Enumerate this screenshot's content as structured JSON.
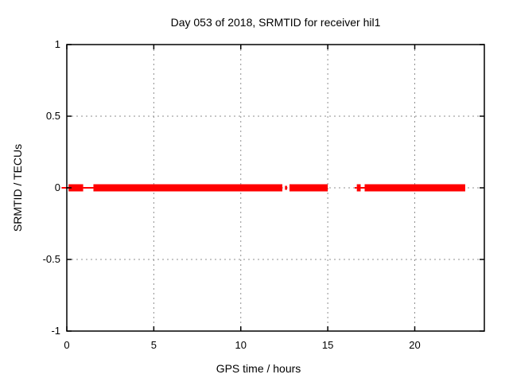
{
  "window": {
    "background_color": "#ffffff",
    "border_color": "#000000"
  },
  "chart_data": {
    "type": "line",
    "title": "Day 053 of 2018, SRMTID for receiver hil1",
    "xlabel": "GPS time / hours",
    "ylabel": "SRMTID / TECUs",
    "xlim": [
      0,
      24
    ],
    "ylim": [
      -1,
      1
    ],
    "grid": true,
    "grid_color": "#8f8f8f",
    "legend": "none",
    "xticks": [
      {
        "value": 0,
        "label": "0"
      },
      {
        "value": 5,
        "label": "5"
      },
      {
        "value": 10,
        "label": "10"
      },
      {
        "value": 15,
        "label": "15"
      },
      {
        "value": 20,
        "label": "20"
      }
    ],
    "yticks": [
      {
        "value": 1,
        "label": "1"
      },
      {
        "value": 0.5,
        "label": "0.5"
      },
      {
        "value": 0,
        "label": "0"
      },
      {
        "value": -0.5,
        "label": "-0.5"
      },
      {
        "value": -1,
        "label": "-1"
      }
    ],
    "series": [
      {
        "name": "SRMTID",
        "color": "#ff0000",
        "y_value": 0,
        "band_halfwidth_tecu": 0.025,
        "segments": [
          {
            "x_start": -0.3,
            "x_end": 0.1,
            "style": "thin"
          },
          {
            "x_start": 0.1,
            "x_end": 0.94,
            "style": "thick"
          },
          {
            "x_start": 0.94,
            "x_end": 1.53,
            "style": "thin"
          },
          {
            "x_start": 1.53,
            "x_end": 12.39,
            "style": "thick"
          },
          {
            "x_start": 12.54,
            "x_end": 12.66,
            "style": "medium"
          },
          {
            "x_start": 12.8,
            "x_end": 15.0,
            "style": "thick"
          },
          {
            "x_start": 16.55,
            "x_end": 16.67,
            "style": "thin"
          },
          {
            "x_start": 16.67,
            "x_end": 16.89,
            "style": "thick"
          },
          {
            "x_start": 16.89,
            "x_end": 17.12,
            "style": "thin"
          },
          {
            "x_start": 17.12,
            "x_end": 22.9,
            "style": "thick"
          }
        ],
        "data_gaps_hours": [
          [
            12.39,
            12.54
          ],
          [
            12.66,
            12.8
          ],
          [
            15.0,
            16.55
          ]
        ]
      }
    ]
  }
}
